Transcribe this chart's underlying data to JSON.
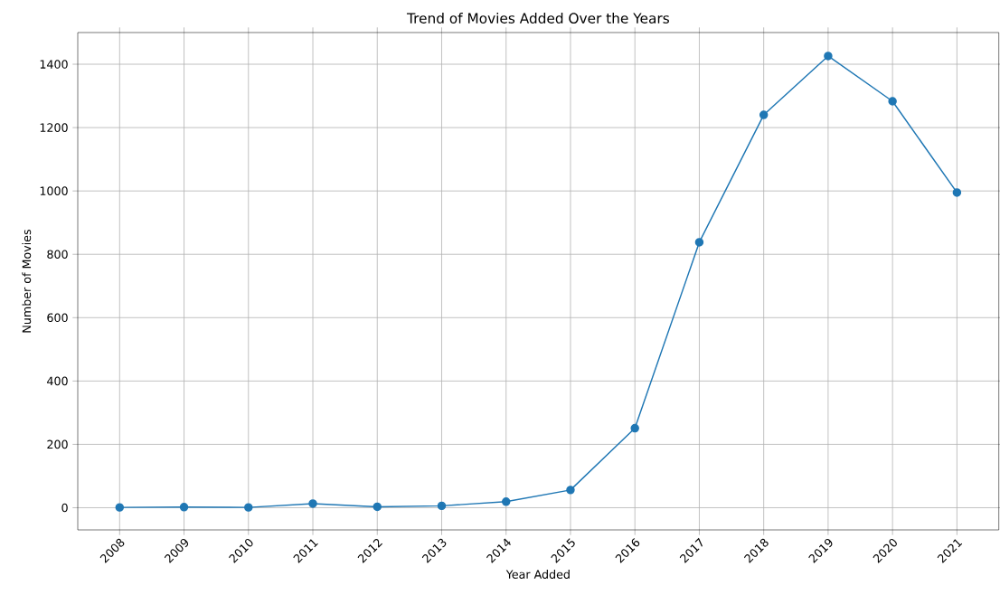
{
  "chart_data": {
    "type": "line",
    "title": "Trend of Movies Added Over the Years",
    "xlabel": "Year Added",
    "ylabel": "Number of Movies",
    "x": [
      2008,
      2009,
      2010,
      2011,
      2012,
      2013,
      2014,
      2015,
      2016,
      2017,
      2018,
      2019,
      2020,
      2021
    ],
    "series": [
      {
        "color": "#1f77b4",
        "values": [
          1,
          2,
          1,
          13,
          3,
          6,
          19,
          56,
          251,
          838,
          1240,
          1426,
          1283,
          995
        ]
      }
    ],
    "xlim": [
      2007.35,
      2021.65
    ],
    "ylim": [
      -70,
      1500
    ],
    "xticks": [
      2008,
      2009,
      2010,
      2011,
      2012,
      2013,
      2014,
      2015,
      2016,
      2017,
      2018,
      2019,
      2020,
      2021
    ],
    "yticks": [
      0,
      200,
      400,
      600,
      800,
      1000,
      1200,
      1400
    ],
    "grid": true,
    "marker": "circle",
    "line_style": "solid"
  }
}
